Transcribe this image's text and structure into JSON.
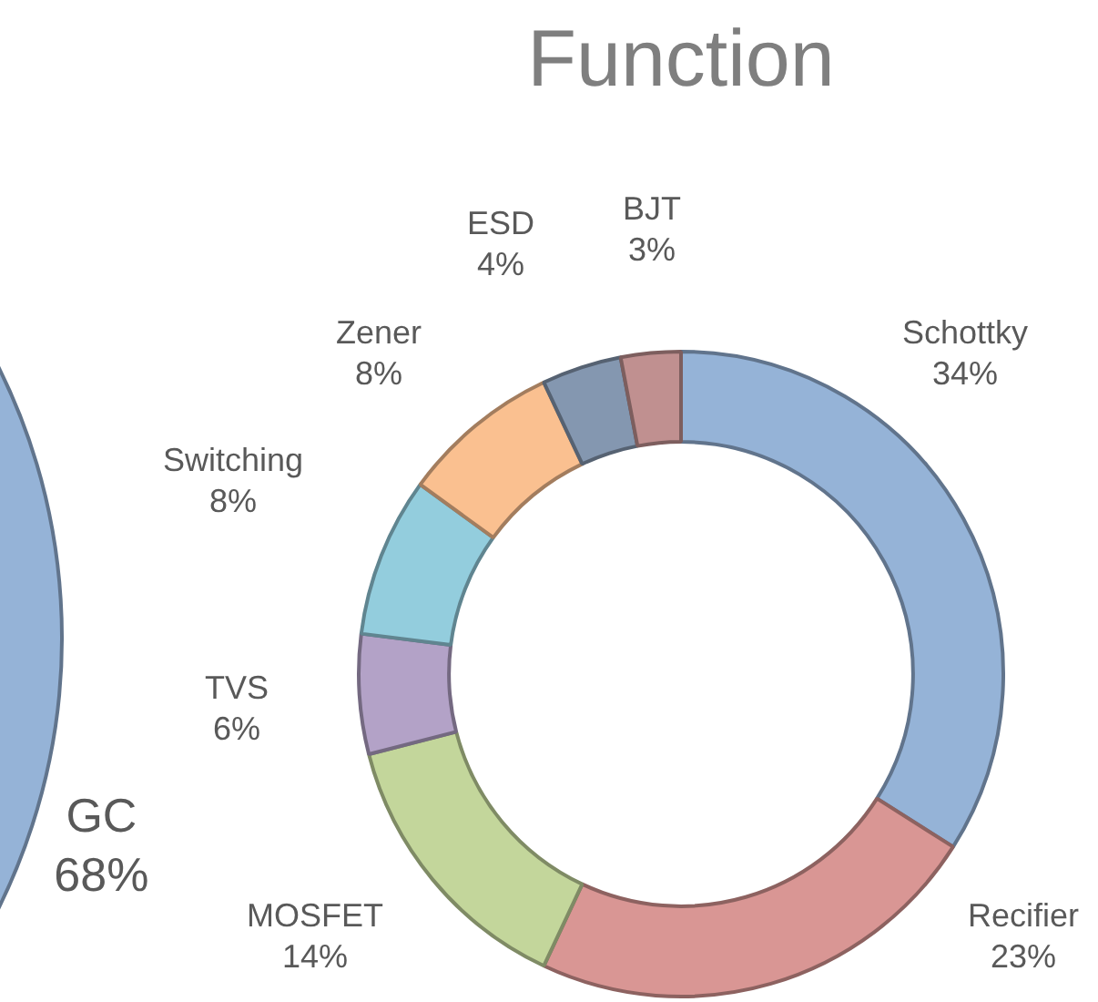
{
  "chart_data": [
    {
      "type": "pie",
      "categories": [
        "GC"
      ],
      "values": [
        68
      ],
      "colors": [
        "#95b3d7"
      ],
      "value_labels": [
        "68%"
      ]
    },
    {
      "type": "donut",
      "title": "Function",
      "categories": [
        "Schottky",
        "Recifier",
        "MOSFET",
        "TVS",
        "Switching",
        "Zener",
        "ESD",
        "BJT"
      ],
      "values": [
        34,
        23,
        14,
        6,
        8,
        8,
        4,
        3
      ],
      "colors": [
        "#95b3d7",
        "#d99694",
        "#c3d69b",
        "#b3a2c7",
        "#93cddd",
        "#fac090",
        "#8497b0",
        "#c09090"
      ],
      "value_labels": [
        "34%",
        "23%",
        "14%",
        "6%",
        "8%",
        "8%",
        "4%",
        "3%"
      ]
    }
  ]
}
